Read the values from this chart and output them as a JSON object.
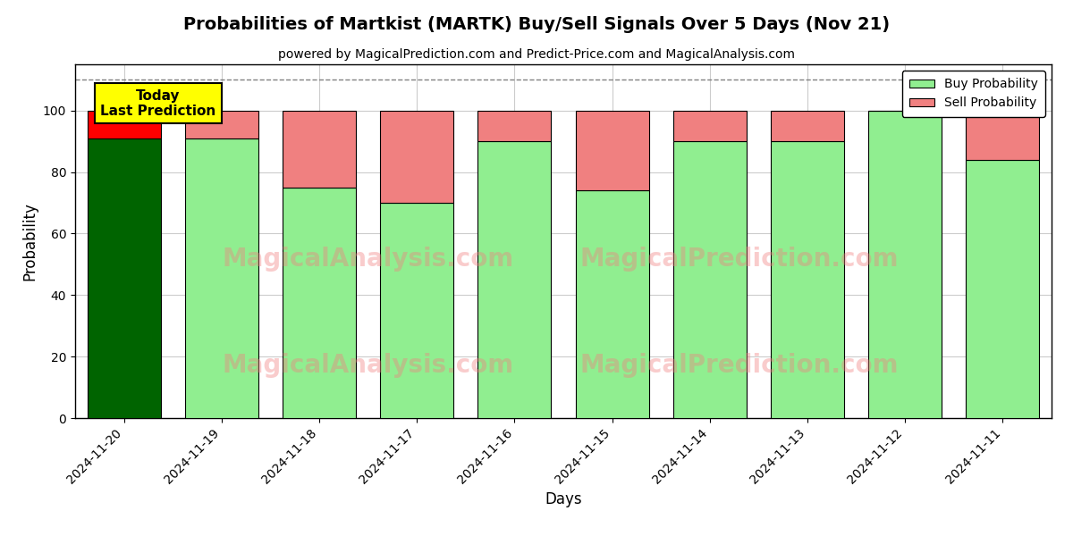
{
  "title": "Probabilities of Martkist (MARTK) Buy/Sell Signals Over 5 Days (Nov 21)",
  "subtitle": "powered by MagicalPrediction.com and Predict-Price.com and MagicalAnalysis.com",
  "dates": [
    "2024-11-20",
    "2024-11-19",
    "2024-11-18",
    "2024-11-17",
    "2024-11-16",
    "2024-11-15",
    "2024-11-14",
    "2024-11-13",
    "2024-11-12",
    "2024-11-11"
  ],
  "buy_probs": [
    91,
    91,
    75,
    70,
    90,
    74,
    90,
    90,
    100,
    84
  ],
  "sell_probs": [
    9,
    9,
    25,
    30,
    10,
    26,
    10,
    10,
    0,
    16
  ],
  "buy_color_first": "#006400",
  "buy_color_rest": "#90EE90",
  "sell_color_first": "#FF0000",
  "sell_color_rest": "#F08080",
  "bar_edge_color": "#000000",
  "ylabel": "Probability",
  "xlabel": "Days",
  "ylim": [
    0,
    115
  ],
  "yticks": [
    0,
    20,
    40,
    60,
    80,
    100
  ],
  "dashed_line_y": 110,
  "annotation_text": "Today\nLast Prediction",
  "annotation_bg": "#FFFF00",
  "background_color": "#ffffff",
  "grid_color": "#cccccc",
  "watermark1": "MagicalAnalysis.com",
  "watermark2": "MagicalPrediction.com",
  "legend_buy_color": "#90EE90",
  "legend_sell_color": "#F08080",
  "bar_width": 0.75
}
